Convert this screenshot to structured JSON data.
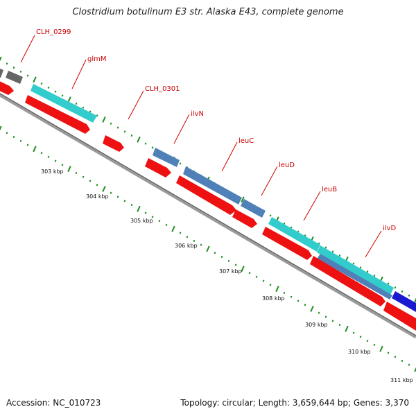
{
  "title": "Clostridium botulinum E3 str. Alaska E43, complete genome",
  "footer": {
    "accession": "Accession: NC_010723",
    "summary": "Topology: circular; Length: 3,659,644 bp; Genes: 3,370"
  },
  "colors": {
    "cds": "#ee1111",
    "gene_teal": "#33cccc",
    "gene_steel": "#4f81b8",
    "gene_blue": "#1a1ad0",
    "gene_grey": "#666666",
    "backbone": "#808080",
    "tick": "#1e8c1e",
    "label": "#cc0000"
  },
  "gene_labels": [
    "CLH_0299",
    "glmM",
    "CLH_0301",
    "ilvN",
    "leuC",
    "leuD",
    "leuB",
    "ilvD"
  ],
  "kbp_ticks": [
    "303 kbp",
    "304 kbp",
    "305 kbp",
    "306 kbp",
    "307 kbp",
    "308 kbp",
    "309 kbp",
    "310 kbp",
    "311 kbp"
  ]
}
